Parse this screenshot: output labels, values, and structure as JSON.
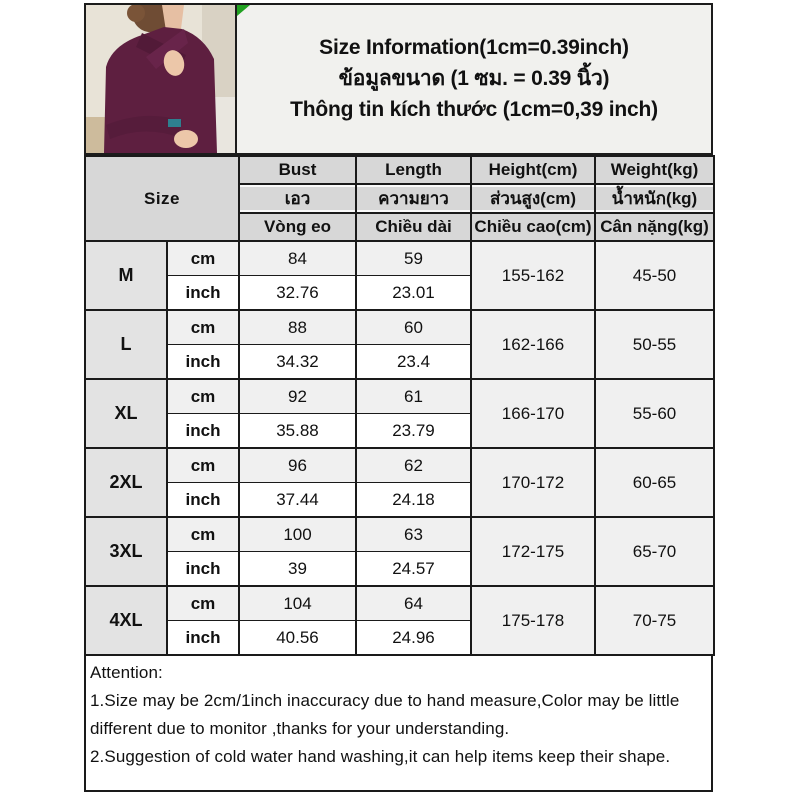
{
  "header": {
    "title_en": "Size Information(1cm=0.39inch)",
    "title_th": "ข้อมูลขนาด (1 ซม. = 0.39 นิ้ว)",
    "title_vi": "Thông tin kích thước (1cm=0,39 inch)"
  },
  "photo": {
    "description": "model wearing dark maroon cross-collar turtleneck top",
    "garment_color": "#5e1f40",
    "background_color": "#e8e3d7"
  },
  "accent_colors": {
    "corner_marker_green": "#21a121",
    "header_cell_gray": "#d7d7d7",
    "size_label_gray": "#e3e3e3",
    "alt_row_gray": "#f0f0f0"
  },
  "table": {
    "size_header": "Size",
    "columns": [
      {
        "en": "Bust",
        "th": "เอว",
        "vi": "Vòng eo"
      },
      {
        "en": "Length",
        "th": "ความยาว",
        "vi": "Chiều dài"
      },
      {
        "en": "Height(cm)",
        "th": "ส่วนสูง(cm)",
        "vi": "Chiều cao(cm)"
      },
      {
        "en": "Weight(kg)",
        "th": "น้ำหนัก(kg)",
        "vi": "Cân nặng(kg)"
      }
    ],
    "unit_labels": {
      "cm": "cm",
      "inch": "inch"
    },
    "rows": [
      {
        "size": "M",
        "bust_cm": "84",
        "length_cm": "59",
        "bust_inch": "32.76",
        "length_inch": "23.01",
        "height": "155-162",
        "weight": "45-50"
      },
      {
        "size": "L",
        "bust_cm": "88",
        "length_cm": "60",
        "bust_inch": "34.32",
        "length_inch": "23.4",
        "height": "162-166",
        "weight": "50-55"
      },
      {
        "size": "XL",
        "bust_cm": "92",
        "length_cm": "61",
        "bust_inch": "35.88",
        "length_inch": "23.79",
        "height": "166-170",
        "weight": "55-60"
      },
      {
        "size": "2XL",
        "bust_cm": "96",
        "length_cm": "62",
        "bust_inch": "37.44",
        "length_inch": "24.18",
        "height": "170-172",
        "weight": "60-65"
      },
      {
        "size": "3XL",
        "bust_cm": "100",
        "length_cm": "63",
        "bust_inch": "39",
        "length_inch": "24.57",
        "height": "172-175",
        "weight": "65-70"
      },
      {
        "size": "4XL",
        "bust_cm": "104",
        "length_cm": "64",
        "bust_inch": "40.56",
        "length_inch": "24.96",
        "height": "175-178",
        "weight": "70-75"
      }
    ]
  },
  "attention": {
    "title": "Attention:",
    "line1": "1.Size may be 2cm/1inch inaccuracy due to hand measure,Color may be little different due to monitor ,thanks for your understanding.",
    "line2": "2.Suggestion of cold water hand washing,it can help items keep their shape."
  }
}
